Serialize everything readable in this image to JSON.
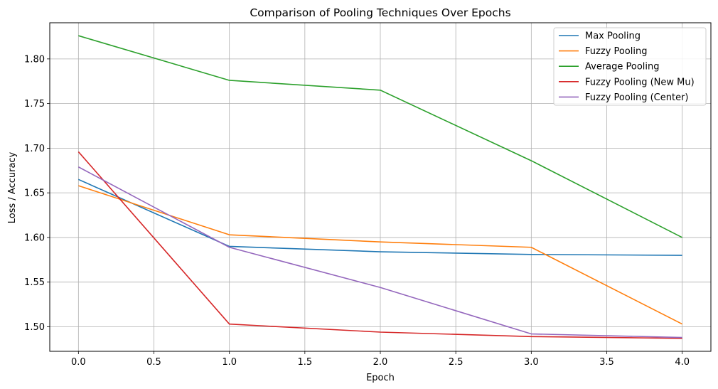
{
  "chart_data": {
    "type": "line",
    "title": "Comparison of Pooling Techniques Over Epochs",
    "xlabel": "Epoch",
    "ylabel": "Loss / Accuracy",
    "x": [
      0,
      1,
      2,
      3,
      4
    ],
    "xlim": [
      -0.19,
      4.19
    ],
    "ylim": [
      1.4725,
      1.8405
    ],
    "xticks": [
      0.0,
      0.5,
      1.0,
      1.5,
      2.0,
      2.5,
      3.0,
      3.5,
      4.0
    ],
    "xtick_labels": [
      "0.0",
      "0.5",
      "1.0",
      "1.5",
      "2.0",
      "2.5",
      "3.0",
      "3.5",
      "4.0"
    ],
    "yticks": [
      1.5,
      1.55,
      1.6,
      1.65,
      1.7,
      1.75,
      1.8
    ],
    "ytick_labels": [
      "1.50",
      "1.55",
      "1.60",
      "1.65",
      "1.70",
      "1.75",
      "1.80"
    ],
    "grid": true,
    "legend_position": "top-right",
    "series": [
      {
        "name": "Max Pooling",
        "color": "#1f77b4",
        "values": [
          1.665,
          1.59,
          1.584,
          1.581,
          1.58
        ]
      },
      {
        "name": "Fuzzy Pooling",
        "color": "#ff7f0e",
        "values": [
          1.658,
          1.603,
          1.595,
          1.589,
          1.503
        ]
      },
      {
        "name": "Average Pooling",
        "color": "#2ca02c",
        "values": [
          1.826,
          1.776,
          1.765,
          1.686,
          1.6
        ]
      },
      {
        "name": "Fuzzy Pooling (New Mu)",
        "color": "#d62728",
        "values": [
          1.696,
          1.503,
          1.494,
          1.489,
          1.487
        ]
      },
      {
        "name": "Fuzzy Pooling (Center)",
        "color": "#9467bd",
        "values": [
          1.679,
          1.589,
          1.544,
          1.492,
          1.488
        ]
      }
    ]
  }
}
